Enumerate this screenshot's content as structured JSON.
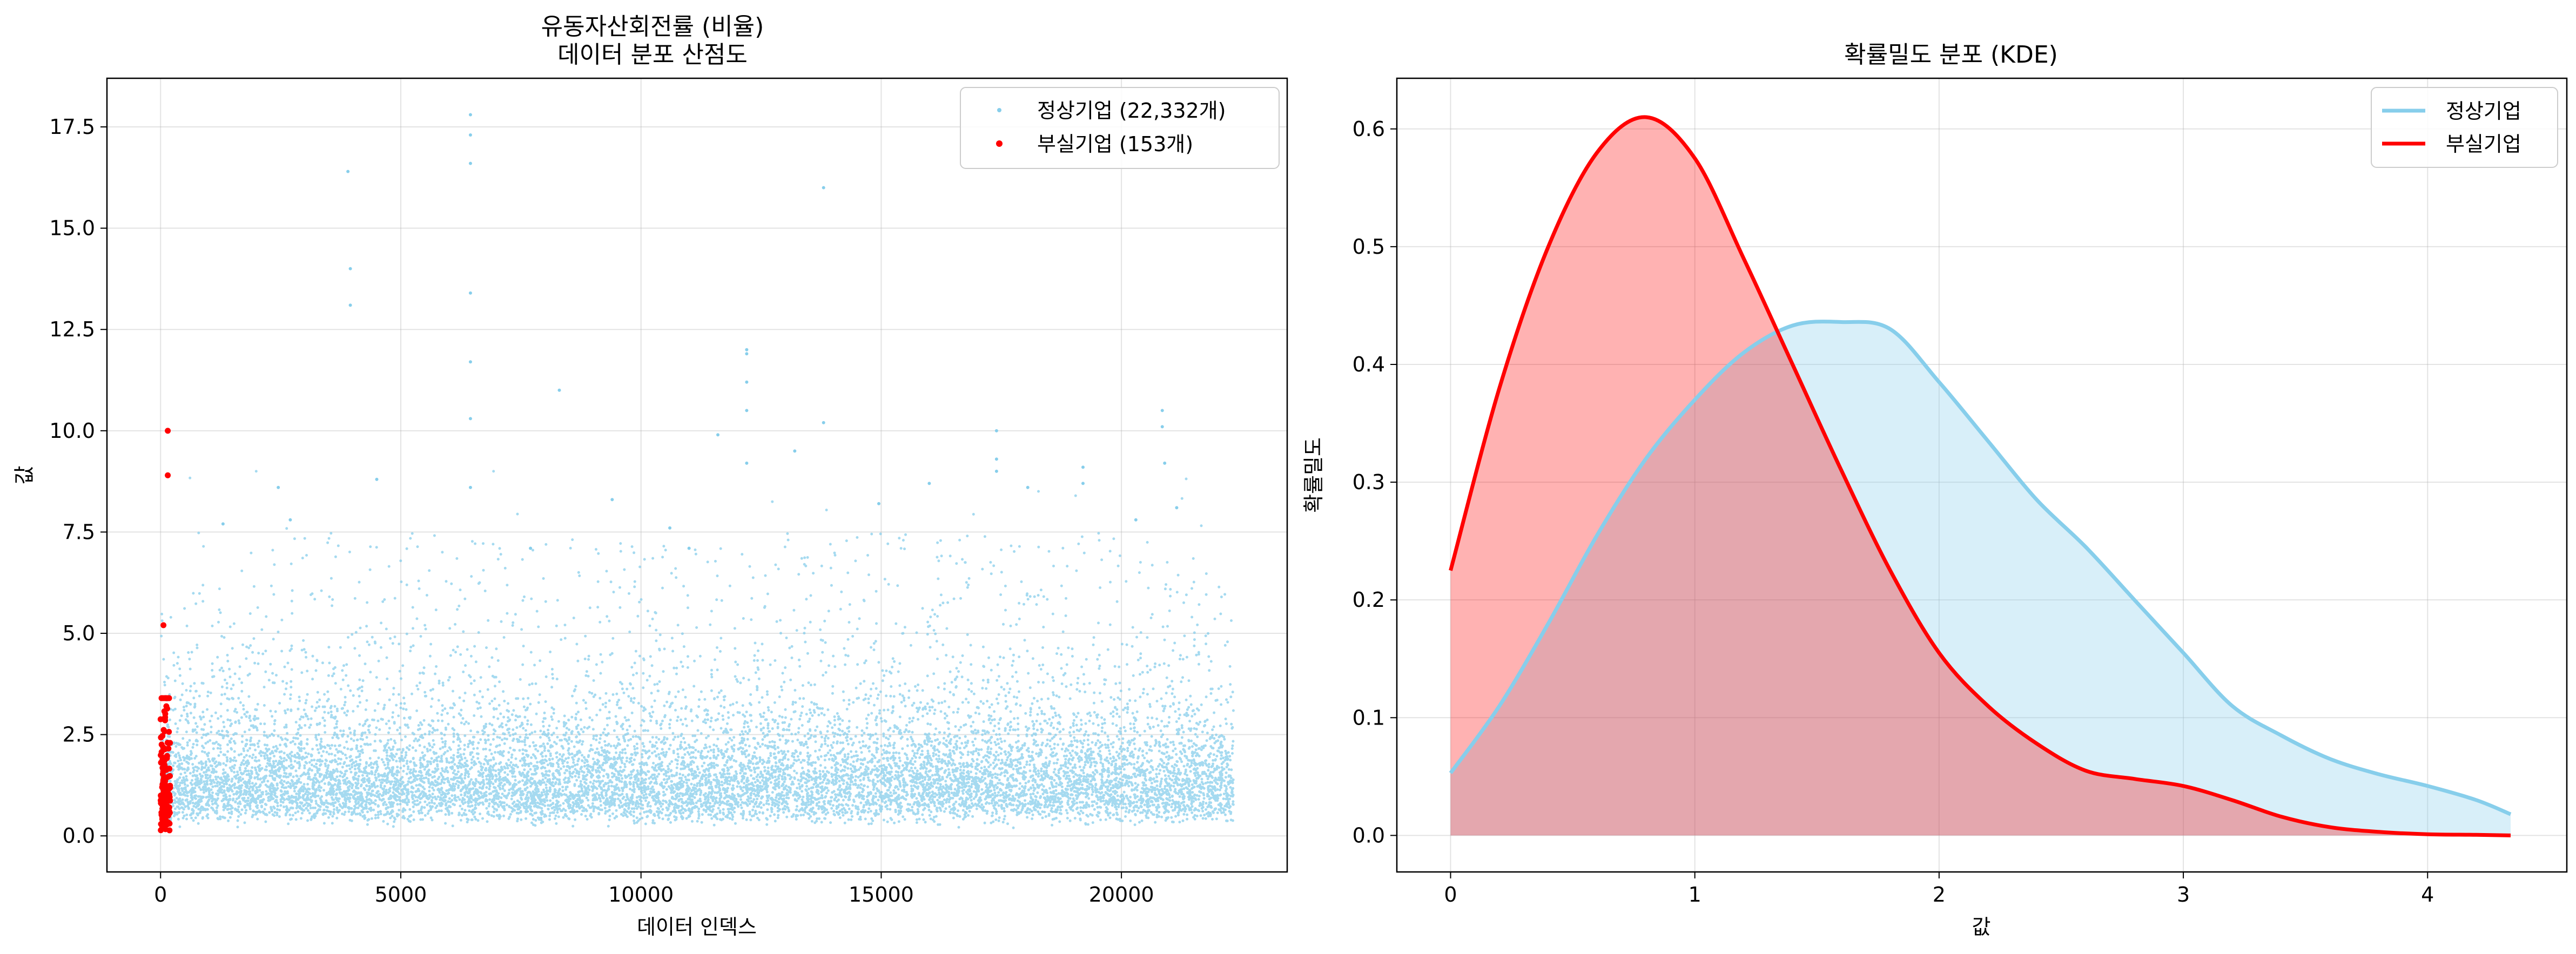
{
  "chart_data": [
    {
      "type": "scatter",
      "title": "유동자산회전률 (비율)",
      "subtitle": "데이터 분포 산점도",
      "xlabel": "데이터 인덱스",
      "ylabel": "값",
      "xlim": [
        -1116,
        23450
      ],
      "ylim": [
        -0.89,
        18.7
      ],
      "xticks": [
        0,
        5000,
        10000,
        15000,
        20000
      ],
      "xtick_labels": [
        "0",
        "5000",
        "10000",
        "15000",
        "20000"
      ],
      "yticks": [
        0,
        2.5,
        5,
        7.5,
        10,
        12.5,
        15,
        17.5
      ],
      "ytick_labels": [
        "0.0",
        "2.5",
        "5.0",
        "7.5",
        "10.0",
        "12.5",
        "15.0",
        "17.5"
      ],
      "grid": true,
      "legend_position": "top-right",
      "series": [
        {
          "name": "정상기업 (22,332개)",
          "color": "#87CEEB",
          "count": 22332,
          "x_range": [
            0,
            22332
          ],
          "typical_range": [
            0.2,
            3.0
          ],
          "outliers": [
            {
              "x": 3900,
              "y": 16.4
            },
            {
              "x": 3950,
              "y": 14.0
            },
            {
              "x": 3950,
              "y": 13.1
            },
            {
              "x": 6450,
              "y": 17.8
            },
            {
              "x": 6450,
              "y": 17.3
            },
            {
              "x": 6450,
              "y": 16.6
            },
            {
              "x": 6450,
              "y": 13.4
            },
            {
              "x": 6450,
              "y": 11.7
            },
            {
              "x": 6450,
              "y": 10.3
            },
            {
              "x": 6450,
              "y": 8.6
            },
            {
              "x": 8300,
              "y": 11.0
            },
            {
              "x": 12200,
              "y": 12.0
            },
            {
              "x": 12200,
              "y": 11.9
            },
            {
              "x": 12200,
              "y": 11.2
            },
            {
              "x": 12200,
              "y": 10.5
            },
            {
              "x": 12200,
              "y": 9.2
            },
            {
              "x": 13800,
              "y": 16.0
            },
            {
              "x": 13800,
              "y": 10.2
            },
            {
              "x": 13200,
              "y": 9.5
            },
            {
              "x": 11600,
              "y": 9.9
            },
            {
              "x": 17400,
              "y": 10.0
            },
            {
              "x": 17400,
              "y": 9.3
            },
            {
              "x": 17400,
              "y": 9.0
            },
            {
              "x": 20850,
              "y": 10.5
            },
            {
              "x": 20850,
              "y": 10.1
            },
            {
              "x": 20900,
              "y": 9.2
            },
            {
              "x": 19200,
              "y": 9.1
            },
            {
              "x": 19200,
              "y": 8.7
            },
            {
              "x": 21150,
              "y": 8.1
            },
            {
              "x": 2450,
              "y": 8.6
            },
            {
              "x": 4500,
              "y": 8.8
            },
            {
              "x": 9400,
              "y": 8.3
            },
            {
              "x": 16000,
              "y": 8.7
            },
            {
              "x": 18050,
              "y": 8.6
            },
            {
              "x": 20300,
              "y": 7.8
            },
            {
              "x": 14950,
              "y": 8.2
            },
            {
              "x": 1300,
              "y": 7.7
            },
            {
              "x": 2700,
              "y": 7.8
            },
            {
              "x": 7700,
              "y": 7.1
            },
            {
              "x": 10600,
              "y": 7.6
            },
            {
              "x": 11000,
              "y": 7.1
            }
          ]
        },
        {
          "name": "부실기업 (153개)",
          "color": "#FF0000",
          "count": 153,
          "x_range": [
            0,
            200
          ],
          "typical_range": [
            0.1,
            3.4
          ],
          "outliers": [
            {
              "x": 150,
              "y": 10.0
            },
            {
              "x": 150,
              "y": 8.9
            },
            {
              "x": 60,
              "y": 5.2
            },
            {
              "x": 20,
              "y": 3.4
            },
            {
              "x": 120,
              "y": 3.2
            },
            {
              "x": 90,
              "y": 2.9
            }
          ]
        }
      ]
    },
    {
      "type": "area",
      "title": "확률밀도 분포 (KDE)",
      "xlabel": "값",
      "ylabel": "확률밀도",
      "xlim": [
        -0.22,
        4.57
      ],
      "ylim": [
        -0.031,
        0.643
      ],
      "xticks": [
        0,
        1,
        2,
        3,
        4
      ],
      "xtick_labels": [
        "0",
        "1",
        "2",
        "3",
        "4"
      ],
      "yticks": [
        0,
        0.1,
        0.2,
        0.3,
        0.4,
        0.5,
        0.6
      ],
      "ytick_labels": [
        "0.0",
        "0.1",
        "0.2",
        "0.3",
        "0.4",
        "0.5",
        "0.6"
      ],
      "grid": true,
      "legend_position": "top-right",
      "series": [
        {
          "name": "정상기업",
          "color": "#87CEEB",
          "fill_color": "#87CEEB",
          "x": [
            0,
            0.2,
            0.4,
            0.6,
            0.8,
            1.0,
            1.2,
            1.4,
            1.6,
            1.8,
            2.0,
            2.2,
            2.4,
            2.6,
            2.8,
            3.0,
            3.2,
            3.4,
            3.6,
            3.8,
            4.0,
            4.2,
            4.34
          ],
          "y": [
            0.053,
            0.11,
            0.18,
            0.255,
            0.32,
            0.37,
            0.41,
            0.433,
            0.436,
            0.43,
            0.385,
            0.335,
            0.285,
            0.245,
            0.2,
            0.155,
            0.11,
            0.085,
            0.065,
            0.052,
            0.042,
            0.03,
            0.018
          ]
        },
        {
          "name": "부실기업",
          "color": "#FF0000",
          "fill_color": "#FF0000",
          "x": [
            0,
            0.2,
            0.4,
            0.6,
            0.8,
            1.0,
            1.2,
            1.4,
            1.6,
            1.8,
            2.0,
            2.2,
            2.4,
            2.6,
            2.8,
            3.0,
            3.2,
            3.4,
            3.6,
            3.8,
            4.0,
            4.2,
            4.34
          ],
          "y": [
            0.225,
            0.38,
            0.5,
            0.58,
            0.61,
            0.575,
            0.49,
            0.4,
            0.31,
            0.225,
            0.155,
            0.11,
            0.078,
            0.055,
            0.048,
            0.042,
            0.03,
            0.016,
            0.007,
            0.003,
            0.001,
            0.0005,
            0.0
          ]
        }
      ]
    }
  ]
}
